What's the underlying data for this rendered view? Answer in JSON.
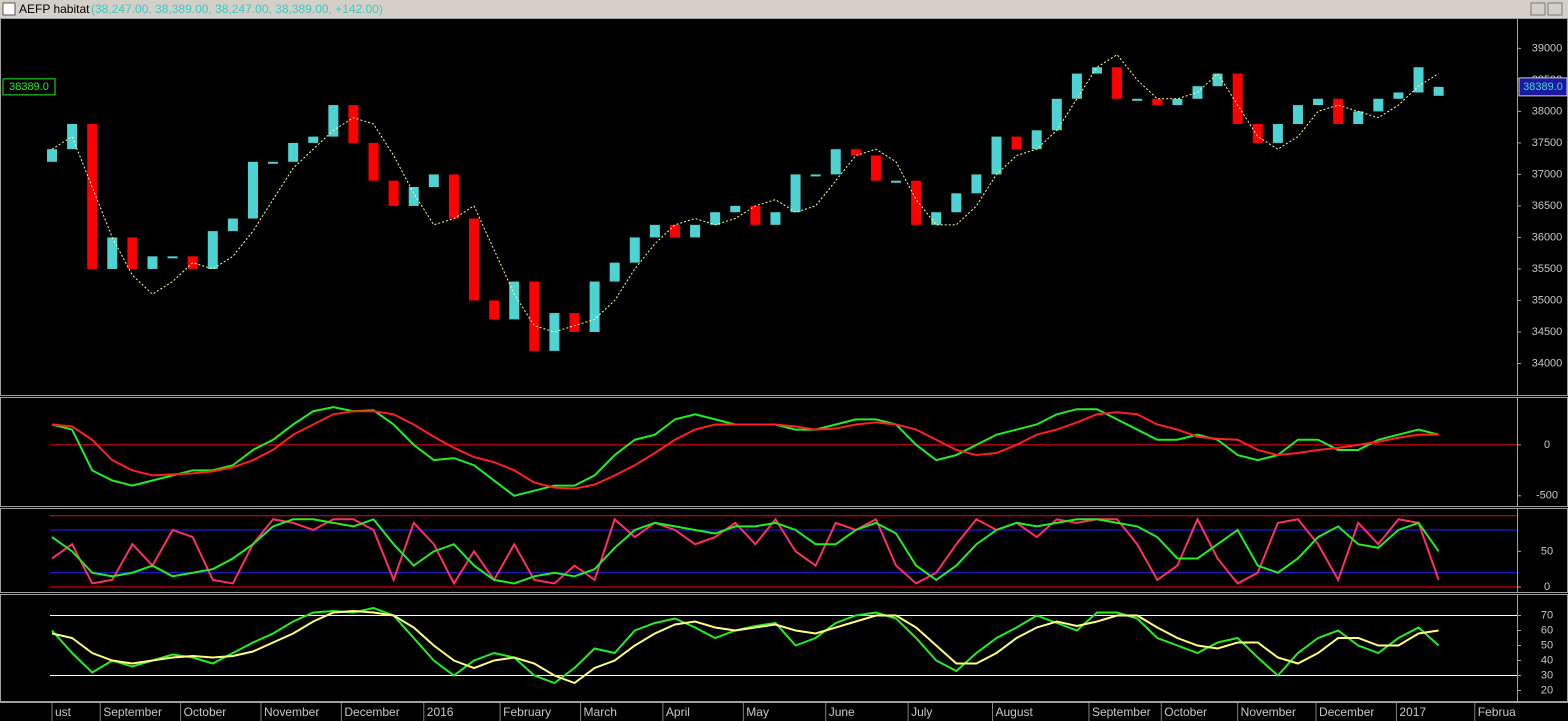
{
  "window": {
    "title": "AEFP habitat",
    "quote": "(38,247.00, 38,389.00, 38,247.00, 38,389.00, +142.00)"
  },
  "chart_data": [
    {
      "type": "candlestick",
      "open": [
        37200,
        37400,
        37800,
        35500,
        36000,
        35500,
        35700,
        35700,
        35500,
        36100,
        36300,
        37200,
        37200,
        37500,
        37600,
        38100,
        37500,
        36900,
        36500,
        36800,
        37000,
        36300,
        35000,
        34700,
        35300,
        34200,
        34800,
        34500,
        35300,
        35600,
        36000,
        36200,
        36000,
        36200,
        36400,
        36500,
        36200,
        36400,
        37000,
        37000,
        37400,
        37300,
        36900,
        36900,
        36200,
        36400,
        36700,
        37000,
        37600,
        37400,
        37700,
        38200,
        38600,
        38700,
        38200,
        38200,
        38100,
        38200,
        38400,
        38600,
        37800,
        37500,
        37800,
        38100,
        38200,
        37800,
        38000,
        38200,
        38300,
        38247
      ],
      "close": [
        37400,
        37800,
        35500,
        36000,
        35500,
        35700,
        35700,
        35500,
        36100,
        36300,
        37200,
        37200,
        37500,
        37600,
        38100,
        37500,
        36900,
        36500,
        36800,
        37000,
        36300,
        35000,
        34700,
        35300,
        34200,
        34800,
        34500,
        35300,
        35600,
        36000,
        36200,
        36000,
        36200,
        36400,
        36500,
        36200,
        36400,
        37000,
        37000,
        37400,
        37300,
        36900,
        36900,
        36200,
        36400,
        36700,
        37000,
        37600,
        37400,
        37700,
        38200,
        38600,
        38700,
        38200,
        38200,
        38100,
        38200,
        38400,
        38600,
        37800,
        37500,
        37800,
        38100,
        38200,
        37800,
        38000,
        38200,
        38300,
        38700,
        38389
      ],
      "up_color": "#4fd2d2",
      "down_color": "#ff0000",
      "series": [
        {
          "color": "#ffff99",
          "dashed": true,
          "values": [
            37400,
            37600,
            36800,
            36000,
            35400,
            35100,
            35300,
            35600,
            35500,
            35700,
            36100,
            36600,
            37100,
            37400,
            37700,
            37900,
            37800,
            37300,
            36700,
            36200,
            36300,
            36500,
            35800,
            35100,
            34600,
            34500,
            34600,
            34700,
            35000,
            35500,
            35900,
            36200,
            36300,
            36200,
            36300,
            36500,
            36600,
            36400,
            36500,
            36900,
            37300,
            37400,
            37200,
            36600,
            36200,
            36200,
            36500,
            37000,
            37300,
            37400,
            37700,
            38200,
            38700,
            38900,
            38500,
            38200,
            38200,
            38300,
            38600,
            38100,
            37600,
            37400,
            37600,
            38000,
            38100,
            38000,
            37900,
            38100,
            38400,
            38600
          ]
        }
      ],
      "last": {
        "value": 38389,
        "label": "38389.0"
      },
      "xlim": [
        -0.1,
        72.9
      ],
      "ylim": [
        33500,
        39450
      ],
      "yticks": [
        34000,
        34500,
        35000,
        35500,
        36000,
        36500,
        37000,
        37500,
        38000,
        38500,
        39000
      ]
    },
    {
      "type": "line",
      "series": [
        {
          "color": "#22ee22",
          "values": [
            200,
            150,
            -250,
            -350,
            -400,
            -350,
            -300,
            -250,
            -250,
            -200,
            -50,
            50,
            200,
            330,
            370,
            330,
            340,
            200,
            0,
            -150,
            -130,
            -200,
            -350,
            -500,
            -450,
            -400,
            -400,
            -300,
            -100,
            50,
            100,
            250,
            300,
            250,
            200,
            200,
            200,
            150,
            150,
            200,
            250,
            250,
            200,
            0,
            -150,
            -100,
            0,
            100,
            150,
            200,
            300,
            350,
            350,
            250,
            150,
            50,
            50,
            100,
            50,
            -100,
            -150,
            -100,
            50,
            50,
            -50,
            -50,
            50,
            100,
            150,
            100
          ]
        },
        {
          "color": "#ff2020",
          "values": [
            200,
            180,
            50,
            -150,
            -250,
            -300,
            -290,
            -280,
            -260,
            -220,
            -150,
            -50,
            100,
            200,
            300,
            330,
            330,
            300,
            200,
            80,
            -30,
            -120,
            -170,
            -250,
            -370,
            -420,
            -430,
            -390,
            -300,
            -200,
            -80,
            50,
            150,
            200,
            200,
            200,
            200,
            180,
            150,
            160,
            200,
            220,
            200,
            150,
            50,
            -50,
            -100,
            -80,
            0,
            100,
            150,
            220,
            300,
            320,
            300,
            200,
            150,
            80,
            60,
            50,
            -50,
            -100,
            -80,
            -50,
            -30,
            0,
            30,
            70,
            100,
            100
          ]
        }
      ],
      "levels": [
        0
      ],
      "level_colors": [
        "#ff0000"
      ],
      "xlim": [
        -0.1,
        72.9
      ],
      "ylim": [
        -600,
        450
      ],
      "yticks": [
        0,
        -500
      ]
    },
    {
      "type": "line",
      "series": [
        {
          "color": "#ff3060",
          "values": [
            40,
            60,
            5,
            10,
            60,
            30,
            80,
            70,
            10,
            5,
            60,
            95,
            90,
            80,
            95,
            95,
            80,
            10,
            90,
            60,
            5,
            50,
            10,
            60,
            10,
            5,
            30,
            10,
            95,
            70,
            90,
            80,
            60,
            70,
            90,
            60,
            95,
            50,
            30,
            90,
            80,
            95,
            30,
            5,
            20,
            60,
            95,
            80,
            90,
            70,
            95,
            90,
            95,
            95,
            60,
            10,
            30,
            95,
            40,
            5,
            20,
            90,
            95,
            60,
            10,
            90,
            60,
            95,
            90,
            10
          ]
        },
        {
          "color": "#22ee22",
          "values": [
            70,
            50,
            20,
            15,
            20,
            30,
            15,
            20,
            25,
            40,
            60,
            85,
            95,
            95,
            90,
            85,
            95,
            60,
            30,
            50,
            60,
            30,
            10,
            5,
            15,
            20,
            15,
            25,
            55,
            80,
            90,
            85,
            80,
            75,
            85,
            85,
            90,
            80,
            60,
            60,
            80,
            90,
            75,
            30,
            10,
            30,
            60,
            80,
            90,
            85,
            90,
            95,
            95,
            90,
            85,
            70,
            40,
            40,
            60,
            80,
            30,
            20,
            40,
            70,
            85,
            60,
            55,
            80,
            90,
            50
          ]
        }
      ],
      "levels": [
        0,
        20,
        80,
        100
      ],
      "level_colors": [
        "#ff0000",
        "#2020ff",
        "#2020ff",
        "#ff0000"
      ],
      "xlim": [
        -0.1,
        72.9
      ],
      "ylim": [
        -7,
        108
      ],
      "yticks": [
        0,
        50
      ]
    },
    {
      "type": "line",
      "series": [
        {
          "color": "#22ee22",
          "values": [
            60,
            45,
            32,
            40,
            36,
            40,
            44,
            42,
            38,
            45,
            52,
            58,
            66,
            72,
            73,
            72,
            75,
            70,
            55,
            40,
            30,
            40,
            45,
            42,
            30,
            25,
            35,
            48,
            45,
            60,
            65,
            68,
            62,
            55,
            60,
            63,
            65,
            50,
            55,
            65,
            70,
            72,
            68,
            55,
            40,
            33,
            45,
            55,
            62,
            70,
            65,
            60,
            72,
            72,
            68,
            55,
            50,
            45,
            52,
            55,
            42,
            30,
            45,
            55,
            60,
            50,
            45,
            55,
            62,
            50
          ]
        },
        {
          "color": "#ffff80",
          "values": [
            58,
            55,
            45,
            40,
            38,
            40,
            42,
            43,
            42,
            43,
            46,
            52,
            58,
            66,
            72,
            73,
            72,
            70,
            62,
            50,
            40,
            35,
            40,
            42,
            38,
            30,
            25,
            35,
            40,
            50,
            58,
            64,
            66,
            62,
            60,
            62,
            64,
            60,
            58,
            62,
            66,
            70,
            70,
            62,
            50,
            38,
            38,
            45,
            55,
            62,
            66,
            63,
            66,
            70,
            70,
            62,
            55,
            50,
            48,
            52,
            52,
            42,
            38,
            45,
            55,
            55,
            50,
            50,
            58,
            60
          ]
        }
      ],
      "levels": [
        30,
        70
      ],
      "level_colors": [
        "#ffffff",
        "#ffffff"
      ],
      "xlim": [
        -0.1,
        72.9
      ],
      "ylim": [
        13,
        83
      ],
      "yticks": [
        20,
        30,
        40,
        50,
        60,
        70
      ],
      "xticks": [
        {
          "value": 0,
          "label": "ust"
        },
        {
          "value": 2.4,
          "label": "September"
        },
        {
          "value": 6.4,
          "label": "October"
        },
        {
          "value": 10.4,
          "label": "November"
        },
        {
          "value": 14.4,
          "label": "December"
        },
        {
          "value": 18.5,
          "label": "2016"
        },
        {
          "value": 22.3,
          "label": "February"
        },
        {
          "value": 26.3,
          "label": "March"
        },
        {
          "value": 30.4,
          "label": "April"
        },
        {
          "value": 34.4,
          "label": "May"
        },
        {
          "value": 38.5,
          "label": "June"
        },
        {
          "value": 42.6,
          "label": "July"
        },
        {
          "value": 46.8,
          "label": "August"
        },
        {
          "value": 51.6,
          "label": "September"
        },
        {
          "value": 55.2,
          "label": "October"
        },
        {
          "value": 59.0,
          "label": "November"
        },
        {
          "value": 62.9,
          "label": "December"
        },
        {
          "value": 66.9,
          "label": "2017"
        },
        {
          "value": 70.8,
          "label": "Februa"
        }
      ]
    }
  ]
}
